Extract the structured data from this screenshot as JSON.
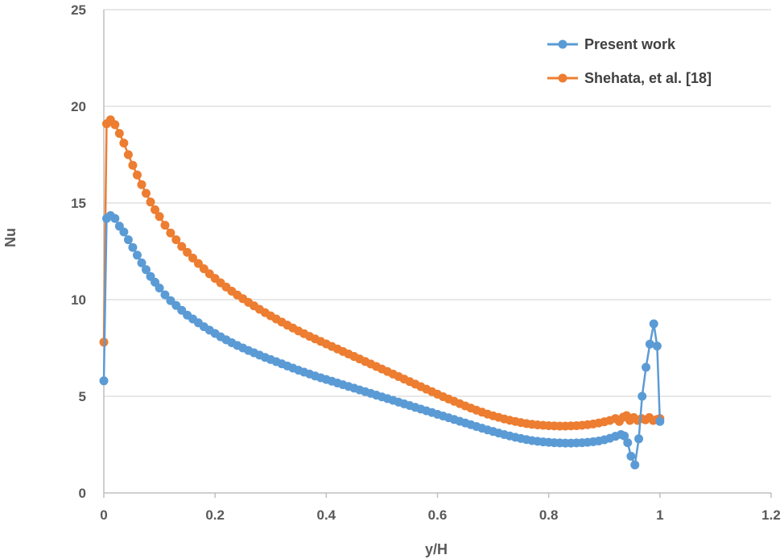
{
  "chart_data": {
    "type": "scatter",
    "title": "",
    "xlabel": "y/H",
    "ylabel": "Nu",
    "xlim": [
      0,
      1.2
    ],
    "ylim": [
      0,
      25
    ],
    "xticks": [
      0,
      0.2,
      0.4,
      0.6,
      0.8,
      1,
      1.2
    ],
    "xtick_labels": [
      "0",
      "0.2",
      "0.4",
      "0.6",
      "0.8",
      "1",
      "1.2"
    ],
    "yticks": [
      0,
      5,
      10,
      15,
      20,
      25
    ],
    "ytick_labels": [
      "0",
      "5",
      "10",
      "15",
      "20",
      "25"
    ],
    "grid": "horizontal",
    "legend_position": "top-right",
    "series": [
      {
        "name": "Present work",
        "color": "#5B9BD5",
        "points": [
          [
            0,
            5.8
          ],
          [
            0.005,
            14.2
          ],
          [
            0.012,
            14.35
          ],
          [
            0.02,
            14.2
          ],
          [
            0.028,
            13.8
          ],
          [
            0.036,
            13.5
          ],
          [
            0.044,
            13.1
          ],
          [
            0.052,
            12.7
          ],
          [
            0.06,
            12.3
          ],
          [
            0.068,
            11.9
          ],
          [
            0.076,
            11.55
          ],
          [
            0.084,
            11.2
          ],
          [
            0.092,
            10.9
          ],
          [
            0.1,
            10.6
          ],
          [
            0.11,
            10.25
          ],
          [
            0.12,
            9.95
          ],
          [
            0.13,
            9.7
          ],
          [
            0.14,
            9.45
          ],
          [
            0.15,
            9.2
          ],
          [
            0.16,
            9.0
          ],
          [
            0.17,
            8.8
          ],
          [
            0.18,
            8.6
          ],
          [
            0.19,
            8.42
          ],
          [
            0.2,
            8.25
          ],
          [
            0.21,
            8.08
          ],
          [
            0.22,
            7.92
          ],
          [
            0.23,
            7.77
          ],
          [
            0.24,
            7.63
          ],
          [
            0.25,
            7.5
          ],
          [
            0.26,
            7.37
          ],
          [
            0.27,
            7.25
          ],
          [
            0.28,
            7.13
          ],
          [
            0.29,
            7.01
          ],
          [
            0.3,
            6.9
          ],
          [
            0.31,
            6.79
          ],
          [
            0.32,
            6.68
          ],
          [
            0.33,
            6.57
          ],
          [
            0.34,
            6.46
          ],
          [
            0.35,
            6.35
          ],
          [
            0.36,
            6.25
          ],
          [
            0.37,
            6.15
          ],
          [
            0.38,
            6.05
          ],
          [
            0.39,
            5.96
          ],
          [
            0.4,
            5.87
          ],
          [
            0.41,
            5.78
          ],
          [
            0.42,
            5.69
          ],
          [
            0.43,
            5.6
          ],
          [
            0.44,
            5.51
          ],
          [
            0.45,
            5.42
          ],
          [
            0.46,
            5.33
          ],
          [
            0.47,
            5.24
          ],
          [
            0.48,
            5.15
          ],
          [
            0.49,
            5.06
          ],
          [
            0.5,
            4.97
          ],
          [
            0.51,
            4.88
          ],
          [
            0.52,
            4.79
          ],
          [
            0.53,
            4.7
          ],
          [
            0.54,
            4.61
          ],
          [
            0.55,
            4.52
          ],
          [
            0.56,
            4.43
          ],
          [
            0.57,
            4.34
          ],
          [
            0.58,
            4.25
          ],
          [
            0.59,
            4.16
          ],
          [
            0.6,
            4.07
          ],
          [
            0.61,
            3.98
          ],
          [
            0.62,
            3.89
          ],
          [
            0.63,
            3.8
          ],
          [
            0.64,
            3.71
          ],
          [
            0.65,
            3.62
          ],
          [
            0.66,
            3.53
          ],
          [
            0.67,
            3.44
          ],
          [
            0.68,
            3.35
          ],
          [
            0.69,
            3.26
          ],
          [
            0.7,
            3.18
          ],
          [
            0.71,
            3.1
          ],
          [
            0.72,
            3.02
          ],
          [
            0.73,
            2.95
          ],
          [
            0.74,
            2.88
          ],
          [
            0.75,
            2.82
          ],
          [
            0.76,
            2.76
          ],
          [
            0.77,
            2.71
          ],
          [
            0.78,
            2.67
          ],
          [
            0.79,
            2.64
          ],
          [
            0.8,
            2.62
          ],
          [
            0.81,
            2.6
          ],
          [
            0.82,
            2.59
          ],
          [
            0.83,
            2.58
          ],
          [
            0.84,
            2.58
          ],
          [
            0.85,
            2.59
          ],
          [
            0.86,
            2.6
          ],
          [
            0.87,
            2.62
          ],
          [
            0.88,
            2.65
          ],
          [
            0.89,
            2.69
          ],
          [
            0.9,
            2.75
          ],
          [
            0.91,
            2.83
          ],
          [
            0.92,
            2.93
          ],
          [
            0.93,
            3.02
          ],
          [
            0.936,
            2.95
          ],
          [
            0.942,
            2.6
          ],
          [
            0.948,
            1.9
          ],
          [
            0.955,
            1.45
          ],
          [
            0.962,
            2.8
          ],
          [
            0.968,
            5.0
          ],
          [
            0.975,
            6.5
          ],
          [
            0.982,
            7.7
          ],
          [
            0.989,
            8.75
          ],
          [
            0.995,
            7.6
          ],
          [
            1.0,
            3.7
          ]
        ]
      },
      {
        "name": "Shehata, et al. [18]",
        "color": "#ED7D31",
        "points": [
          [
            0,
            7.8
          ],
          [
            0.005,
            19.1
          ],
          [
            0.012,
            19.3
          ],
          [
            0.02,
            19.05
          ],
          [
            0.028,
            18.6
          ],
          [
            0.036,
            18.1
          ],
          [
            0.044,
            17.5
          ],
          [
            0.052,
            16.95
          ],
          [
            0.06,
            16.45
          ],
          [
            0.068,
            15.95
          ],
          [
            0.076,
            15.5
          ],
          [
            0.084,
            15.05
          ],
          [
            0.092,
            14.65
          ],
          [
            0.1,
            14.3
          ],
          [
            0.11,
            13.85
          ],
          [
            0.12,
            13.45
          ],
          [
            0.13,
            13.1
          ],
          [
            0.14,
            12.75
          ],
          [
            0.15,
            12.45
          ],
          [
            0.16,
            12.15
          ],
          [
            0.17,
            11.87
          ],
          [
            0.18,
            11.6
          ],
          [
            0.19,
            11.34
          ],
          [
            0.2,
            11.1
          ],
          [
            0.21,
            10.87
          ],
          [
            0.22,
            10.65
          ],
          [
            0.23,
            10.44
          ],
          [
            0.24,
            10.24
          ],
          [
            0.25,
            10.05
          ],
          [
            0.26,
            9.86
          ],
          [
            0.27,
            9.68
          ],
          [
            0.28,
            9.5
          ],
          [
            0.29,
            9.33
          ],
          [
            0.3,
            9.16
          ],
          [
            0.31,
            9.0
          ],
          [
            0.32,
            8.84
          ],
          [
            0.33,
            8.68
          ],
          [
            0.34,
            8.53
          ],
          [
            0.35,
            8.38
          ],
          [
            0.36,
            8.24
          ],
          [
            0.37,
            8.1
          ],
          [
            0.38,
            7.97
          ],
          [
            0.39,
            7.84
          ],
          [
            0.4,
            7.71
          ],
          [
            0.41,
            7.58
          ],
          [
            0.42,
            7.45
          ],
          [
            0.43,
            7.32
          ],
          [
            0.44,
            7.19
          ],
          [
            0.45,
            7.06
          ],
          [
            0.46,
            6.93
          ],
          [
            0.47,
            6.8
          ],
          [
            0.48,
            6.67
          ],
          [
            0.49,
            6.54
          ],
          [
            0.5,
            6.41
          ],
          [
            0.51,
            6.28
          ],
          [
            0.52,
            6.15
          ],
          [
            0.53,
            6.02
          ],
          [
            0.54,
            5.89
          ],
          [
            0.55,
            5.76
          ],
          [
            0.56,
            5.63
          ],
          [
            0.57,
            5.5
          ],
          [
            0.58,
            5.37
          ],
          [
            0.59,
            5.24
          ],
          [
            0.6,
            5.11
          ],
          [
            0.61,
            4.98
          ],
          [
            0.62,
            4.86
          ],
          [
            0.63,
            4.74
          ],
          [
            0.64,
            4.62
          ],
          [
            0.65,
            4.5
          ],
          [
            0.66,
            4.39
          ],
          [
            0.67,
            4.28
          ],
          [
            0.68,
            4.18
          ],
          [
            0.69,
            4.08
          ],
          [
            0.7,
            3.99
          ],
          [
            0.71,
            3.91
          ],
          [
            0.72,
            3.83
          ],
          [
            0.73,
            3.76
          ],
          [
            0.74,
            3.7
          ],
          [
            0.75,
            3.64
          ],
          [
            0.76,
            3.59
          ],
          [
            0.77,
            3.55
          ],
          [
            0.78,
            3.52
          ],
          [
            0.79,
            3.5
          ],
          [
            0.8,
            3.48
          ],
          [
            0.81,
            3.47
          ],
          [
            0.82,
            3.46
          ],
          [
            0.83,
            3.46
          ],
          [
            0.84,
            3.47
          ],
          [
            0.85,
            3.48
          ],
          [
            0.86,
            3.5
          ],
          [
            0.87,
            3.53
          ],
          [
            0.88,
            3.57
          ],
          [
            0.89,
            3.62
          ],
          [
            0.9,
            3.68
          ],
          [
            0.91,
            3.75
          ],
          [
            0.92,
            3.85
          ],
          [
            0.927,
            3.7
          ],
          [
            0.934,
            3.92
          ],
          [
            0.94,
            4.0
          ],
          [
            0.946,
            3.75
          ],
          [
            0.953,
            3.9
          ],
          [
            0.96,
            3.75
          ],
          [
            0.967,
            3.85
          ],
          [
            0.974,
            3.78
          ],
          [
            0.981,
            3.9
          ],
          [
            0.988,
            3.75
          ],
          [
            0.995,
            3.8
          ],
          [
            1.0,
            3.85
          ]
        ]
      }
    ]
  }
}
